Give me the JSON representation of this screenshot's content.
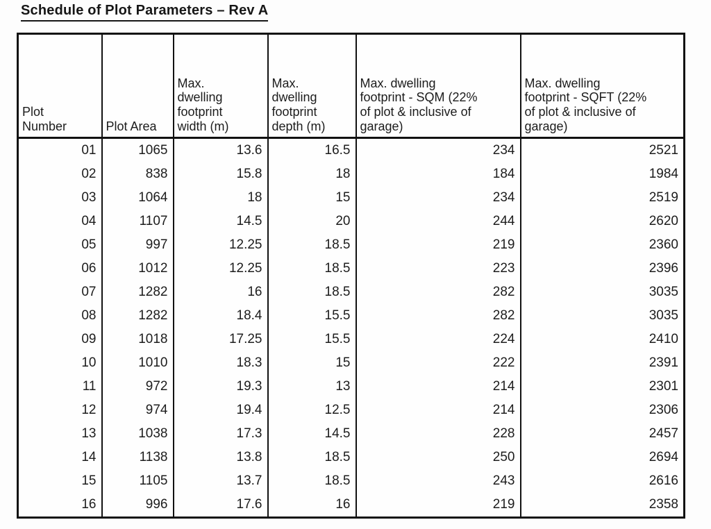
{
  "title": "Schedule of Plot Parameters – Rev A",
  "table": {
    "columns": [
      "Plot\nNumber",
      "Plot Area",
      "Max.\ndwelling\nfootprint\nwidth (m)",
      "Max.\ndwelling\nfootprint\ndepth (m)",
      "Max. dwelling\nfootprint - SQM  (22%\nof plot & inclusive of\ngarage)",
      "Max. dwelling\nfootprint - SQFT  (22%\nof plot & inclusive of\ngarage)"
    ],
    "rows": [
      [
        "01",
        "1065",
        "13.6",
        "16.5",
        "234",
        "2521"
      ],
      [
        "02",
        "838",
        "15.8",
        "18",
        "184",
        "1984"
      ],
      [
        "03",
        "1064",
        "18",
        "15",
        "234",
        "2519"
      ],
      [
        "04",
        "1107",
        "14.5",
        "20",
        "244",
        "2620"
      ],
      [
        "05",
        "997",
        "12.25",
        "18.5",
        "219",
        "2360"
      ],
      [
        "06",
        "1012",
        "12.25",
        "18.5",
        "223",
        "2396"
      ],
      [
        "07",
        "1282",
        "16",
        "18.5",
        "282",
        "3035"
      ],
      [
        "08",
        "1282",
        "18.4",
        "15.5",
        "282",
        "3035"
      ],
      [
        "09",
        "1018",
        "17.25",
        "15.5",
        "224",
        "2410"
      ],
      [
        "10",
        "1010",
        "18.3",
        "15",
        "222",
        "2391"
      ],
      [
        "11",
        "972",
        "19.3",
        "13",
        "214",
        "2301"
      ],
      [
        "12",
        "974",
        "19.4",
        "12.5",
        "214",
        "2306"
      ],
      [
        "13",
        "1038",
        "17.3",
        "14.5",
        "228",
        "2457"
      ],
      [
        "14",
        "1138",
        "13.8",
        "18.5",
        "250",
        "2694"
      ],
      [
        "15",
        "1105",
        "13.7",
        "18.5",
        "243",
        "2616"
      ],
      [
        "16",
        "996",
        "17.6",
        "16",
        "219",
        "2358"
      ]
    ]
  },
  "colors": {
    "ink": "#111111",
    "paper": "#fdfdfd"
  }
}
